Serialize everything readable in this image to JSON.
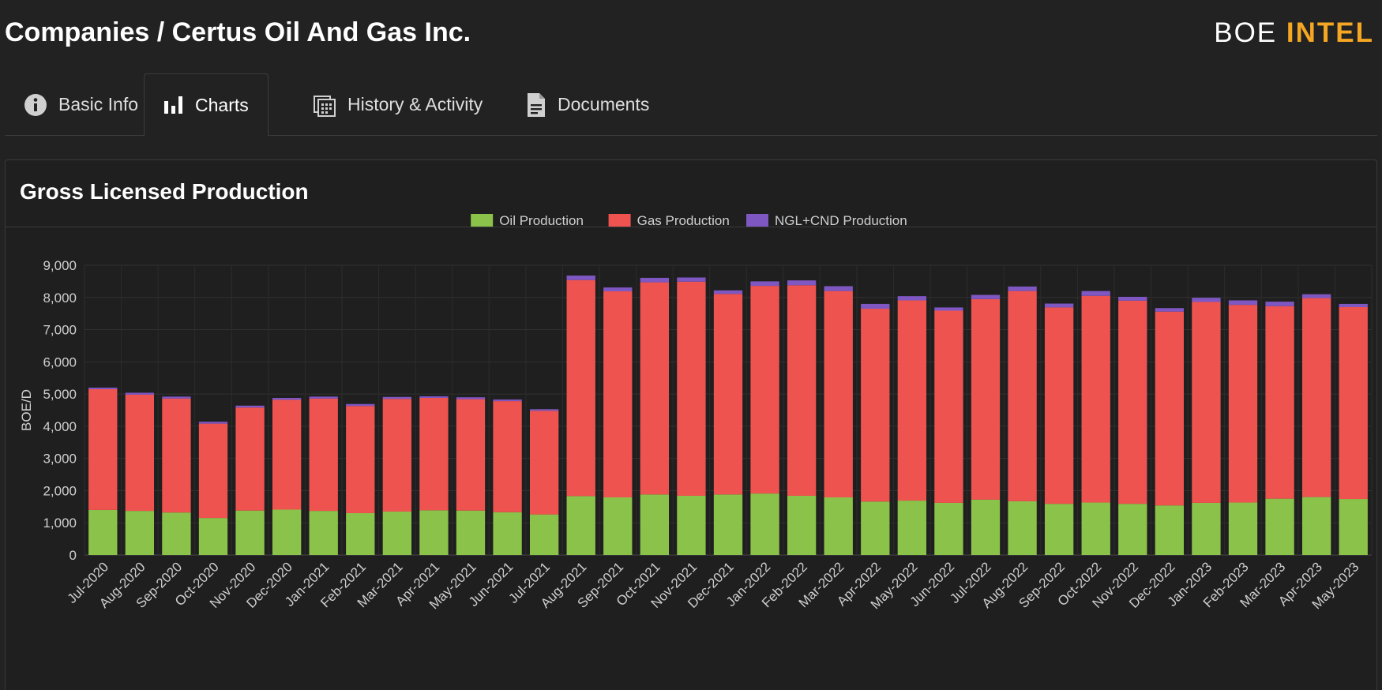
{
  "header": {
    "title": "Companies / Certus Oil And Gas Inc.",
    "logo_part1": "BOE",
    "logo_part2": "INTEL"
  },
  "tabs": [
    {
      "label": "Basic Info",
      "icon": "info-icon"
    },
    {
      "label": "Charts",
      "icon": "bar-chart-icon"
    },
    {
      "label": "History & Activity",
      "icon": "calendar-list-icon"
    },
    {
      "label": "Documents",
      "icon": "document-icon"
    }
  ],
  "colors": {
    "oil": "#8bc34a",
    "gas": "#ef5350",
    "ngl": "#7e57c2",
    "accent": "#f5a623"
  },
  "card": {
    "title": "Gross Licensed Production"
  },
  "chart_data": {
    "type": "bar",
    "stacked": true,
    "ylabel": "BOE/D",
    "ylim": [
      0,
      9000
    ],
    "yticks": [
      0,
      1000,
      2000,
      3000,
      4000,
      5000,
      6000,
      7000,
      8000,
      9000
    ],
    "ytick_labels": [
      "0",
      "1,000",
      "2,000",
      "3,000",
      "4,000",
      "5,000",
      "6,000",
      "7,000",
      "8,000",
      "9,000"
    ],
    "legend_position": "top",
    "grid": true,
    "categories": [
      "Jul-2020",
      "Aug-2020",
      "Sep-2020",
      "Oct-2020",
      "Nov-2020",
      "Dec-2020",
      "Jan-2021",
      "Feb-2021",
      "Mar-2021",
      "Apr-2021",
      "May-2021",
      "Jun-2021",
      "Jul-2021",
      "Aug-2021",
      "Sep-2021",
      "Oct-2021",
      "Nov-2021",
      "Dec-2021",
      "Jan-2022",
      "Feb-2022",
      "Mar-2022",
      "Apr-2022",
      "May-2022",
      "Jun-2022",
      "Jul-2022",
      "Aug-2022",
      "Sep-2022",
      "Oct-2022",
      "Nov-2022",
      "Dec-2022",
      "Jan-2023",
      "Feb-2023",
      "Mar-2023",
      "Apr-2023",
      "May-2023"
    ],
    "series": [
      {
        "name": "Oil Production",
        "values": [
          1400,
          1370,
          1320,
          1150,
          1380,
          1410,
          1370,
          1300,
          1350,
          1390,
          1380,
          1330,
          1260,
          1830,
          1790,
          1880,
          1840,
          1880,
          1910,
          1840,
          1790,
          1660,
          1690,
          1620,
          1720,
          1670,
          1590,
          1630,
          1590,
          1540,
          1620,
          1630,
          1750,
          1800,
          1740
        ]
      },
      {
        "name": "Gas Production",
        "values": [
          3750,
          3610,
          3540,
          2930,
          3200,
          3410,
          3490,
          3330,
          3500,
          3490,
          3460,
          3450,
          3220,
          6710,
          6400,
          6590,
          6650,
          6230,
          6450,
          6540,
          6410,
          5990,
          6220,
          5970,
          6230,
          6530,
          6100,
          6420,
          6310,
          6020,
          6240,
          6140,
          5980,
          6180,
          5960
        ]
      },
      {
        "name": "NGL+CND Production",
        "values": [
          50,
          60,
          60,
          60,
          60,
          60,
          60,
          60,
          60,
          50,
          60,
          50,
          50,
          140,
          120,
          140,
          130,
          110,
          140,
          150,
          150,
          150,
          130,
          100,
          130,
          140,
          120,
          150,
          120,
          110,
          130,
          140,
          140,
          120,
          100
        ]
      }
    ]
  }
}
